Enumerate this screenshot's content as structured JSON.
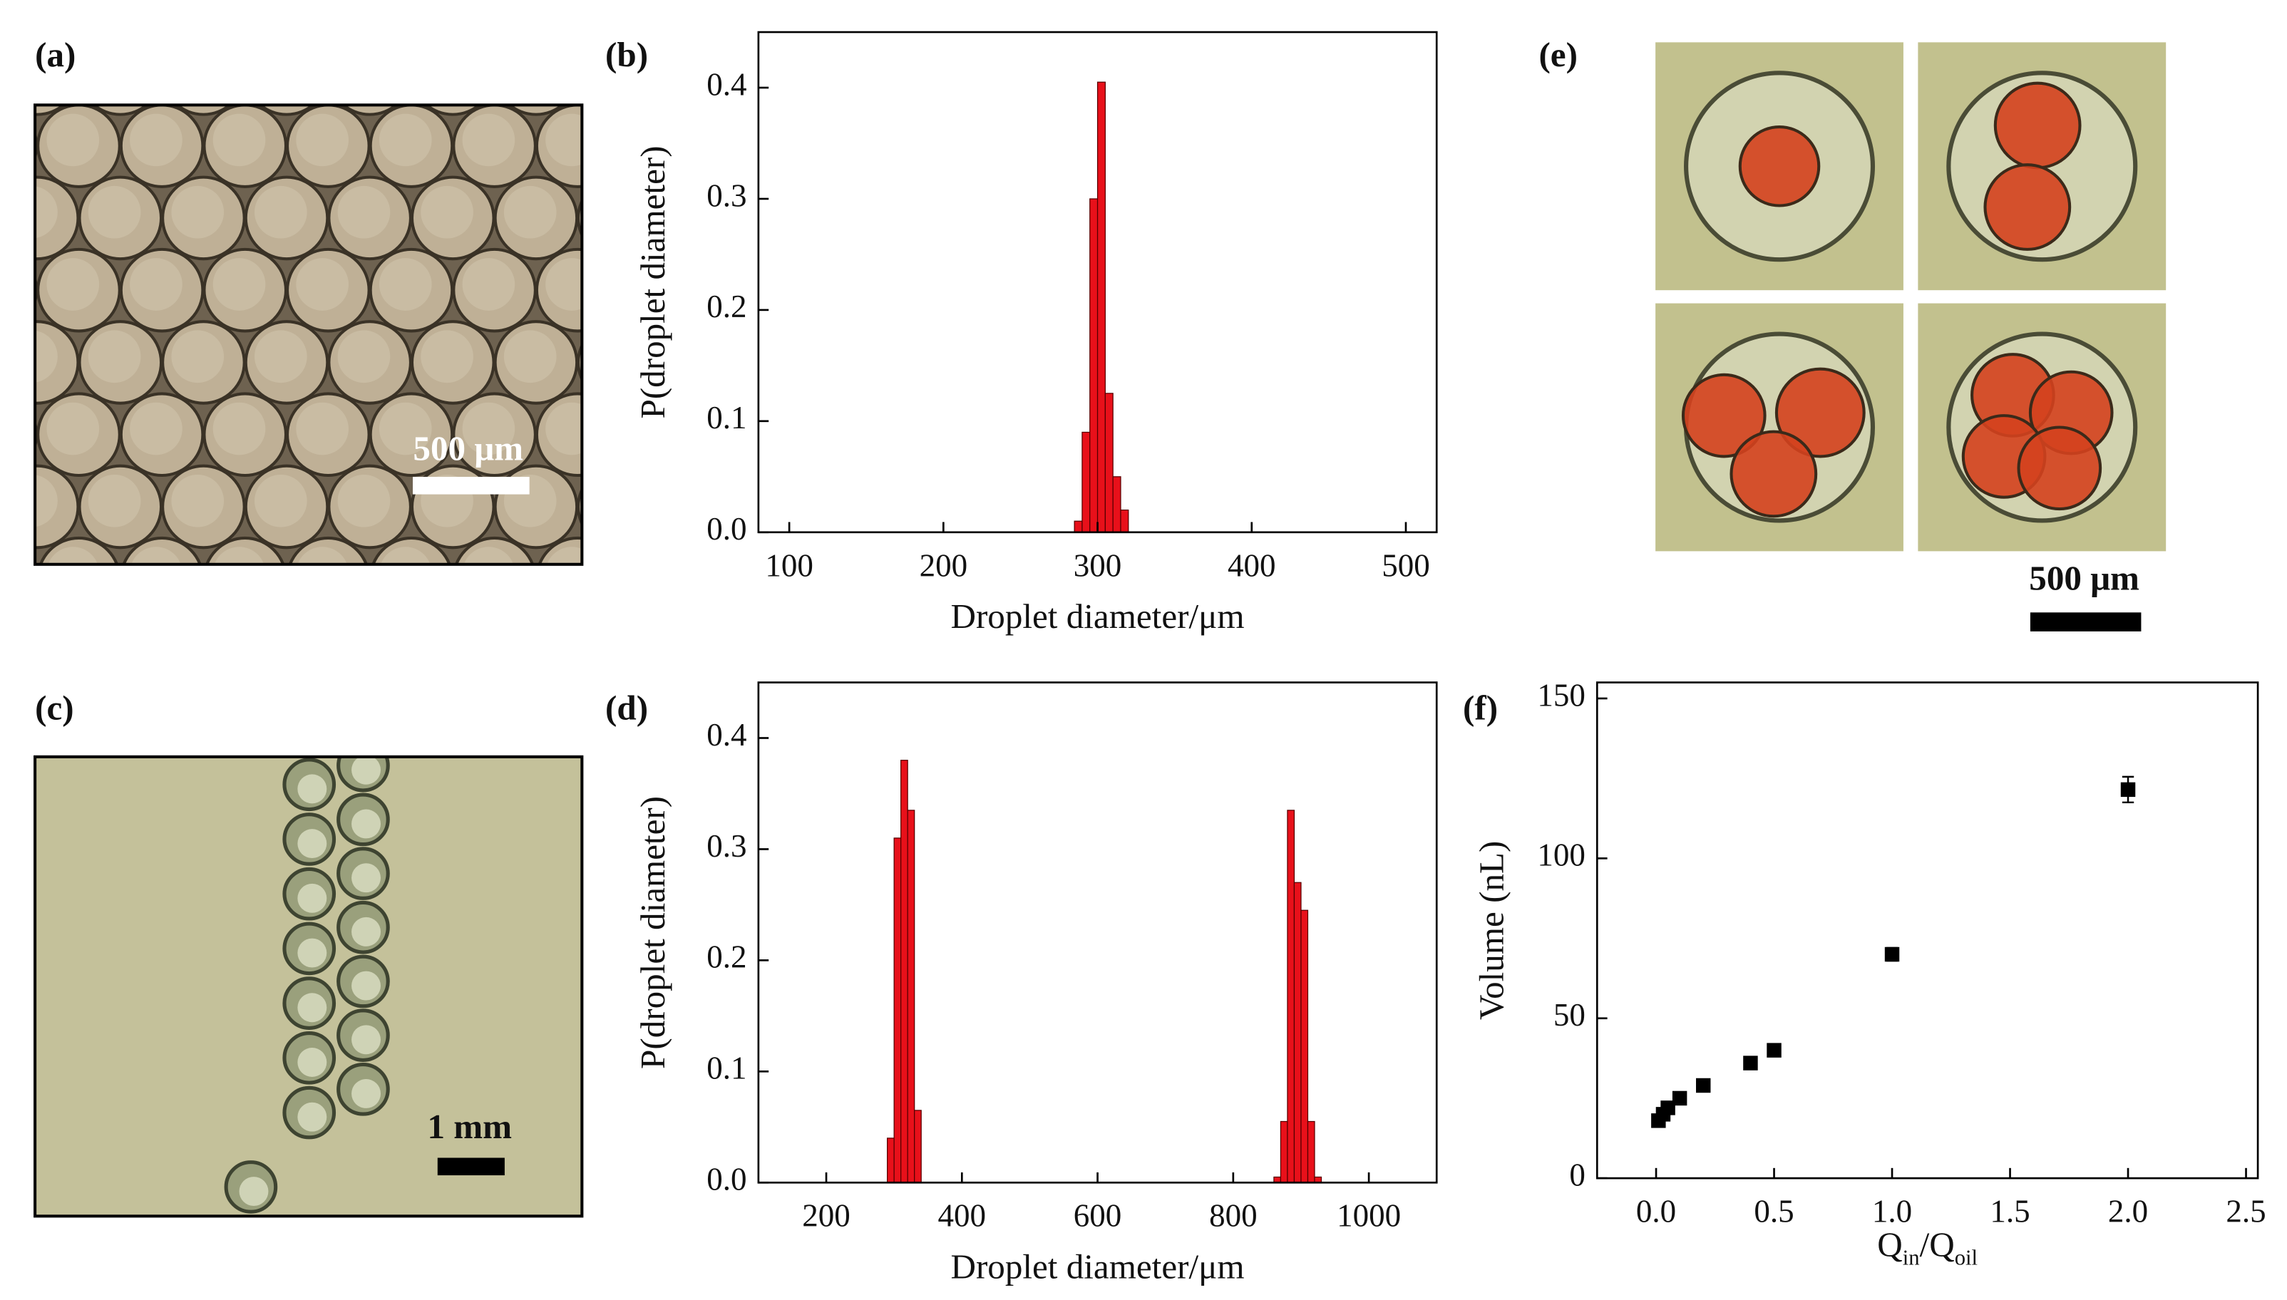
{
  "panels": [
    {
      "label": "(a)",
      "scale_bar": "500 μm"
    },
    {
      "label": "(c)",
      "scale_bar": "1 mm"
    },
    {
      "label": "(e)",
      "scale_bar": "500 μm"
    }
  ],
  "chart_data": [
    {
      "type": "histogram",
      "label": "(b)",
      "xlabel": "Droplet diameter/μm",
      "ylabel": "P(droplet diameter)",
      "color": "#e8101a",
      "bins": [
        285,
        290,
        295,
        300,
        305,
        310,
        315,
        320
      ],
      "values": [
        0.01,
        0.09,
        0.3,
        0.405,
        0.125,
        0.05,
        0.02
      ],
      "xlim": [
        80,
        520
      ],
      "xticks": [
        100,
        200,
        300,
        400,
        500
      ],
      "ylim": [
        0,
        0.45
      ],
      "yticks": [
        {
          "value": 0,
          "label": "0.0"
        },
        0.1,
        0.2,
        0.3,
        0.4
      ]
    },
    {
      "type": "histogram",
      "label": "(d)",
      "xlabel": "Droplet diameter/μm",
      "ylabel": "P(droplet diameter)",
      "color": "#e8101a",
      "bins": [
        290,
        300,
        310,
        320,
        330,
        340,
        350,
        360,
        370,
        380,
        390,
        400,
        410,
        420,
        430,
        440,
        450,
        460,
        470,
        480,
        490,
        500,
        510,
        520,
        530,
        540,
        550,
        560,
        570,
        580,
        590,
        600,
        610,
        620,
        630,
        640,
        650,
        660,
        670,
        680,
        690,
        700,
        710,
        720,
        730,
        740,
        750,
        760,
        770,
        780,
        790,
        800,
        810,
        820,
        830,
        840,
        850,
        860,
        870,
        880,
        890,
        900,
        910,
        920,
        930
      ],
      "values": [
        0.04,
        0.31,
        0.38,
        0.335,
        0.065,
        0,
        0,
        0,
        0,
        0,
        0,
        0,
        0,
        0,
        0,
        0,
        0,
        0,
        0,
        0,
        0,
        0,
        0,
        0,
        0,
        0,
        0,
        0,
        0,
        0,
        0,
        0,
        0,
        0,
        0,
        0,
        0,
        0,
        0,
        0,
        0,
        0,
        0,
        0,
        0,
        0,
        0,
        0,
        0,
        0,
        0,
        0,
        0,
        0,
        0,
        0,
        0,
        0.005,
        0.055,
        0.335,
        0.27,
        0.245,
        0.055,
        0.005
      ],
      "xlim": [
        100,
        1100
      ],
      "xticks": [
        200,
        400,
        600,
        800,
        1000
      ],
      "ylim": [
        0,
        0.45
      ],
      "yticks": [
        {
          "value": 0,
          "label": "0.0"
        },
        0.1,
        0.2,
        0.3,
        0.4
      ]
    },
    {
      "type": "scatter",
      "label": "(f)",
      "xlabel_parts": [
        "Q",
        "in",
        "/Q",
        "oil"
      ],
      "ylabel": "Volume (nL)",
      "color": "#000000",
      "x": [
        0.01,
        0.03,
        0.05,
        0.1,
        0.2,
        0.4,
        0.5,
        1.0,
        2.0
      ],
      "values": [
        18,
        20,
        22,
        25,
        29,
        36,
        40,
        70,
        121.5
      ],
      "errors": [
        1,
        1,
        1,
        1,
        1,
        1,
        1,
        2,
        4
      ],
      "xlim": [
        -0.25,
        2.55
      ],
      "xticks": [
        {
          "value": 0,
          "label": "0.0"
        },
        0.5,
        {
          "value": 1,
          "label": "1.0"
        },
        1.5,
        {
          "value": 2,
          "label": "2.0"
        },
        2.5
      ],
      "ylim": [
        0,
        155
      ],
      "yticks": [
        0,
        50,
        100,
        150
      ]
    }
  ]
}
